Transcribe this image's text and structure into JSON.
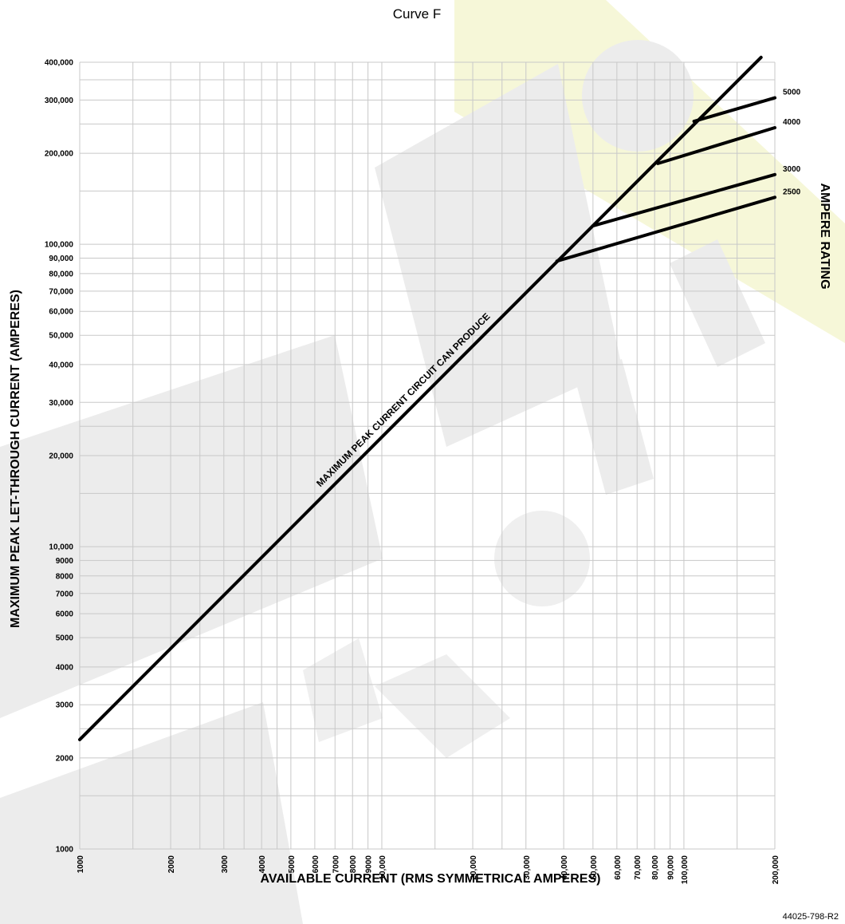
{
  "chart_data": {
    "type": "line",
    "title": "Curve F",
    "xlabel": "AVAILABLE CURRENT  (RMS SYMMETRICAL AMPERES)",
    "ylabel": "MAXIMUM PEAK LET-THROUGH CURRENT  (AMPERES)",
    "right_label": "AMPERE RATING",
    "drawing_number": "44025-798-R2",
    "xscale": "log",
    "yscale": "log",
    "xlim": [
      1000,
      200000
    ],
    "ylim": [
      1000,
      400000
    ],
    "grid": true,
    "x_ticks": [
      1000,
      2000,
      3000,
      4000,
      5000,
      6000,
      7000,
      8000,
      9000,
      10000,
      20000,
      30000,
      40000,
      50000,
      60000,
      70000,
      80000,
      90000,
      100000,
      200000
    ],
    "x_tick_labels": [
      "1000",
      "2000",
      "3000",
      "4000",
      "5000",
      "6000",
      "7000",
      "8000",
      "9000",
      "10,000",
      "20,000",
      "30,000",
      "40,000",
      "50,000",
      "60,000",
      "70,000",
      "80,000",
      "90,000",
      "100,000",
      "200,000"
    ],
    "y_ticks": [
      1000,
      2000,
      3000,
      4000,
      5000,
      6000,
      7000,
      8000,
      9000,
      10000,
      20000,
      30000,
      40000,
      50000,
      60000,
      70000,
      80000,
      90000,
      100000,
      200000,
      300000,
      400000
    ],
    "y_tick_labels": [
      "1000",
      "2000",
      "3000",
      "4000",
      "5000",
      "6000",
      "7000",
      "8000",
      "9000",
      "10,000",
      "20,000",
      "30,000",
      "40,000",
      "50,000",
      "60,000",
      "70,000",
      "80,000",
      "90,000",
      "100,000",
      "200,000",
      "300,000",
      "400,000"
    ],
    "series": [
      {
        "name": "MAXIMUM PEAK CURRENT CIRCUIT CAN PRODUCE",
        "x": [
          1000,
          180000
        ],
        "y": [
          2300,
          415000
        ]
      },
      {
        "name": "2500",
        "x": [
          38000,
          200000
        ],
        "y": [
          88000,
          143000
        ]
      },
      {
        "name": "3000",
        "x": [
          50000,
          200000
        ],
        "y": [
          115000,
          170000
        ]
      },
      {
        "name": "4000",
        "x": [
          82000,
          200000
        ],
        "y": [
          185000,
          243000
        ]
      },
      {
        "name": "5000",
        "x": [
          108000,
          200000
        ],
        "y": [
          255000,
          305000
        ]
      }
    ],
    "series_label_values": [
      "5000",
      "4000",
      "3000",
      "2500"
    ],
    "colors": {
      "line": "#000000",
      "grid": "#c8c8c8",
      "watermark": "#e9e9e9",
      "watermark_accent": "#f6f7d8"
    }
  }
}
